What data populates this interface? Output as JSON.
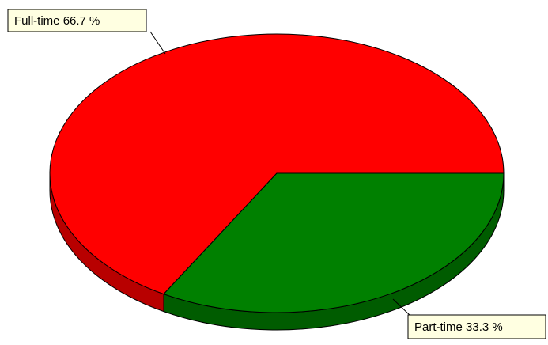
{
  "chart_data": {
    "type": "pie",
    "categories": [
      "Full-time",
      "Part-time"
    ],
    "values": [
      66.7,
      33.3
    ],
    "value_labels": [
      "66.7 %",
      "33.3 %"
    ],
    "colors": [
      "#ff0000",
      "#008000"
    ]
  }
}
